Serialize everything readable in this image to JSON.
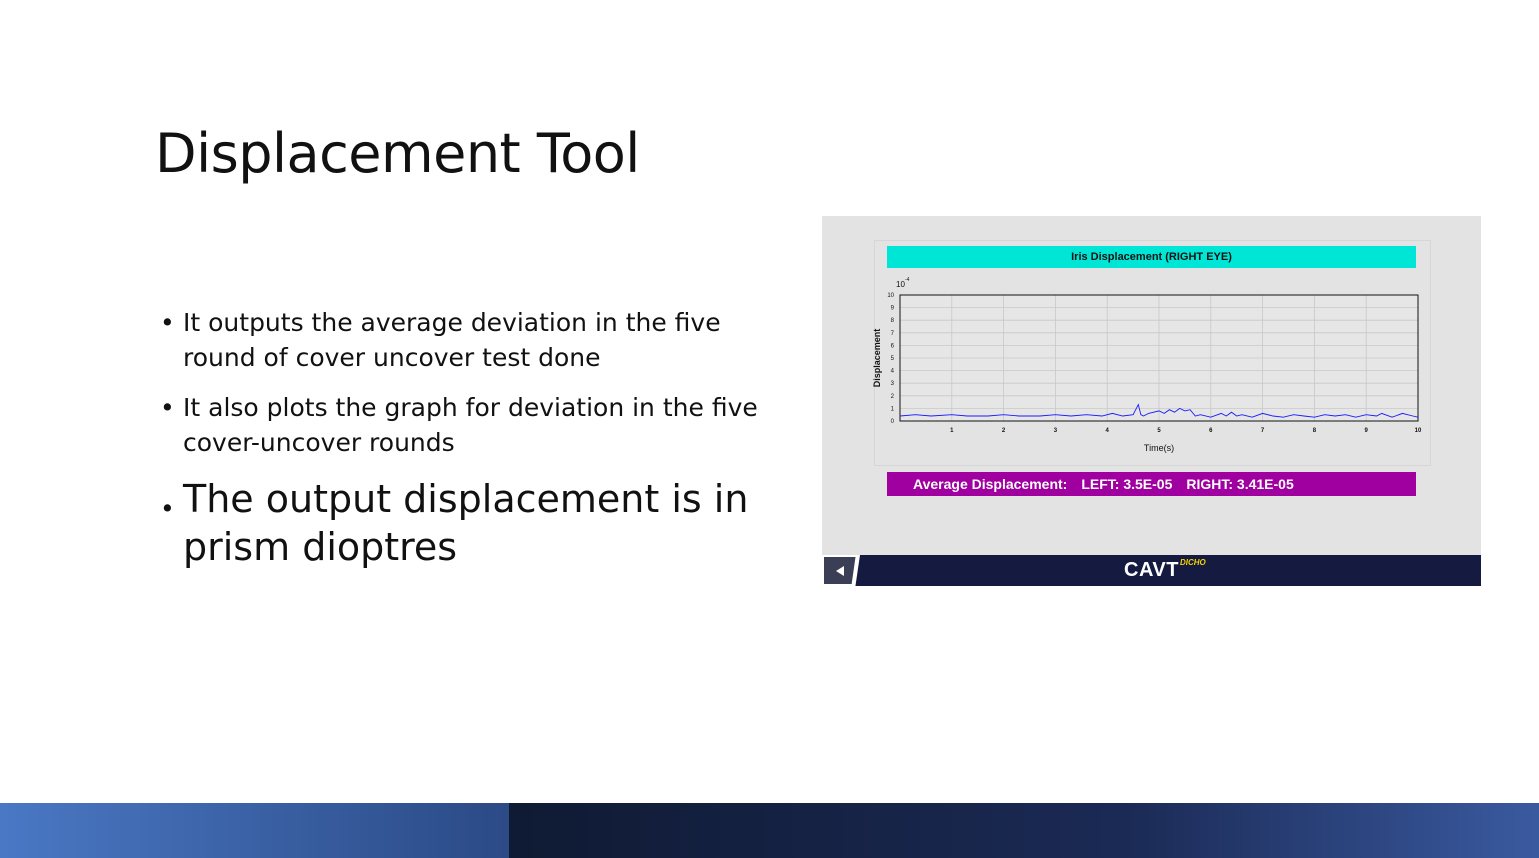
{
  "slide": {
    "title": "Displacement Tool",
    "bullets": [
      "It outputs the average deviation in the five round of cover uncover test done",
      "It also plots the graph for deviation in the five cover-uncover rounds",
      "The output displacement is in prism dioptres"
    ]
  },
  "app": {
    "chart_title": "Iris Displacement (RIGHT EYE)",
    "average": {
      "label": "Average Displacement:",
      "left": "LEFT: 3.5E-05",
      "right": "RIGHT: 3.41E-05"
    },
    "logo": "CAVT",
    "logo_sup": "DICHO",
    "back_icon": "back-arrow-icon"
  },
  "chart_data": {
    "type": "line",
    "title": "Iris Displacement (RIGHT EYE)",
    "xlabel": "Time(s)",
    "ylabel": "Displacement",
    "y_multiplier_label": "10",
    "y_multiplier_exp": "-4",
    "xlim": [
      0,
      10
    ],
    "ylim": [
      0,
      10
    ],
    "x_ticks": [
      "1",
      "2",
      "3",
      "4",
      "5",
      "6",
      "7",
      "8",
      "9",
      "10"
    ],
    "y_ticks": [
      "0",
      "1",
      "2",
      "3",
      "4",
      "5",
      "6",
      "7",
      "8",
      "9",
      "10"
    ],
    "grid": true,
    "series": [
      {
        "color": "#1a1aff",
        "x": [
          0,
          0.3,
          0.6,
          1.0,
          1.3,
          1.7,
          2.0,
          2.3,
          2.7,
          3.0,
          3.3,
          3.6,
          3.9,
          4.1,
          4.3,
          4.5,
          4.6,
          4.65,
          4.7,
          4.8,
          5.0,
          5.1,
          5.2,
          5.3,
          5.4,
          5.5,
          5.6,
          5.7,
          5.8,
          6.0,
          6.2,
          6.3,
          6.4,
          6.5,
          6.6,
          6.8,
          7.0,
          7.2,
          7.4,
          7.6,
          7.8,
          8.0,
          8.2,
          8.4,
          8.6,
          8.8,
          9.0,
          9.2,
          9.3,
          9.5,
          9.7,
          9.9,
          10.0
        ],
        "y": [
          0.4,
          0.5,
          0.4,
          0.5,
          0.4,
          0.4,
          0.5,
          0.4,
          0.4,
          0.5,
          0.4,
          0.5,
          0.4,
          0.6,
          0.4,
          0.5,
          1.3,
          0.5,
          0.4,
          0.6,
          0.8,
          0.6,
          0.9,
          0.7,
          1.0,
          0.8,
          0.9,
          0.4,
          0.5,
          0.3,
          0.6,
          0.4,
          0.7,
          0.4,
          0.5,
          0.3,
          0.6,
          0.4,
          0.3,
          0.5,
          0.4,
          0.3,
          0.5,
          0.4,
          0.5,
          0.3,
          0.5,
          0.4,
          0.6,
          0.3,
          0.6,
          0.4,
          0.3
        ]
      }
    ]
  }
}
